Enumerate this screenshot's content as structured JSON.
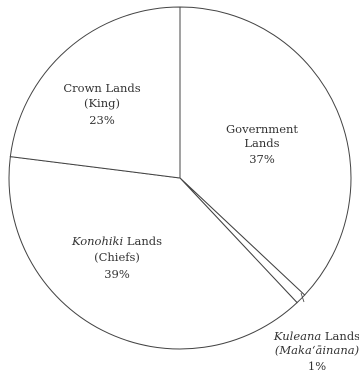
{
  "chart_data": {
    "type": "pie",
    "title": "",
    "slices": [
      {
        "name_italic": "",
        "name_rest": "Government",
        "name_line2": "Lands",
        "value": 37,
        "value_label": "37%"
      },
      {
        "name_italic": "Kuleana",
        "name_rest": " Lands",
        "name_line2": "(Makaʻāinana)",
        "value": 1,
        "value_label": "1%"
      },
      {
        "name_italic": "Konohiki",
        "name_rest": " Lands",
        "name_line2": "(Chiefs)",
        "value": 39,
        "value_label": "39%"
      },
      {
        "name_italic": "",
        "name_rest": "Crown Lands",
        "name_line2": "(King)",
        "value": 23,
        "value_label": "23%"
      }
    ],
    "legend": "none",
    "colors": {
      "fill": "#ffffff",
      "stroke": "#444444",
      "text": "#333333"
    }
  }
}
